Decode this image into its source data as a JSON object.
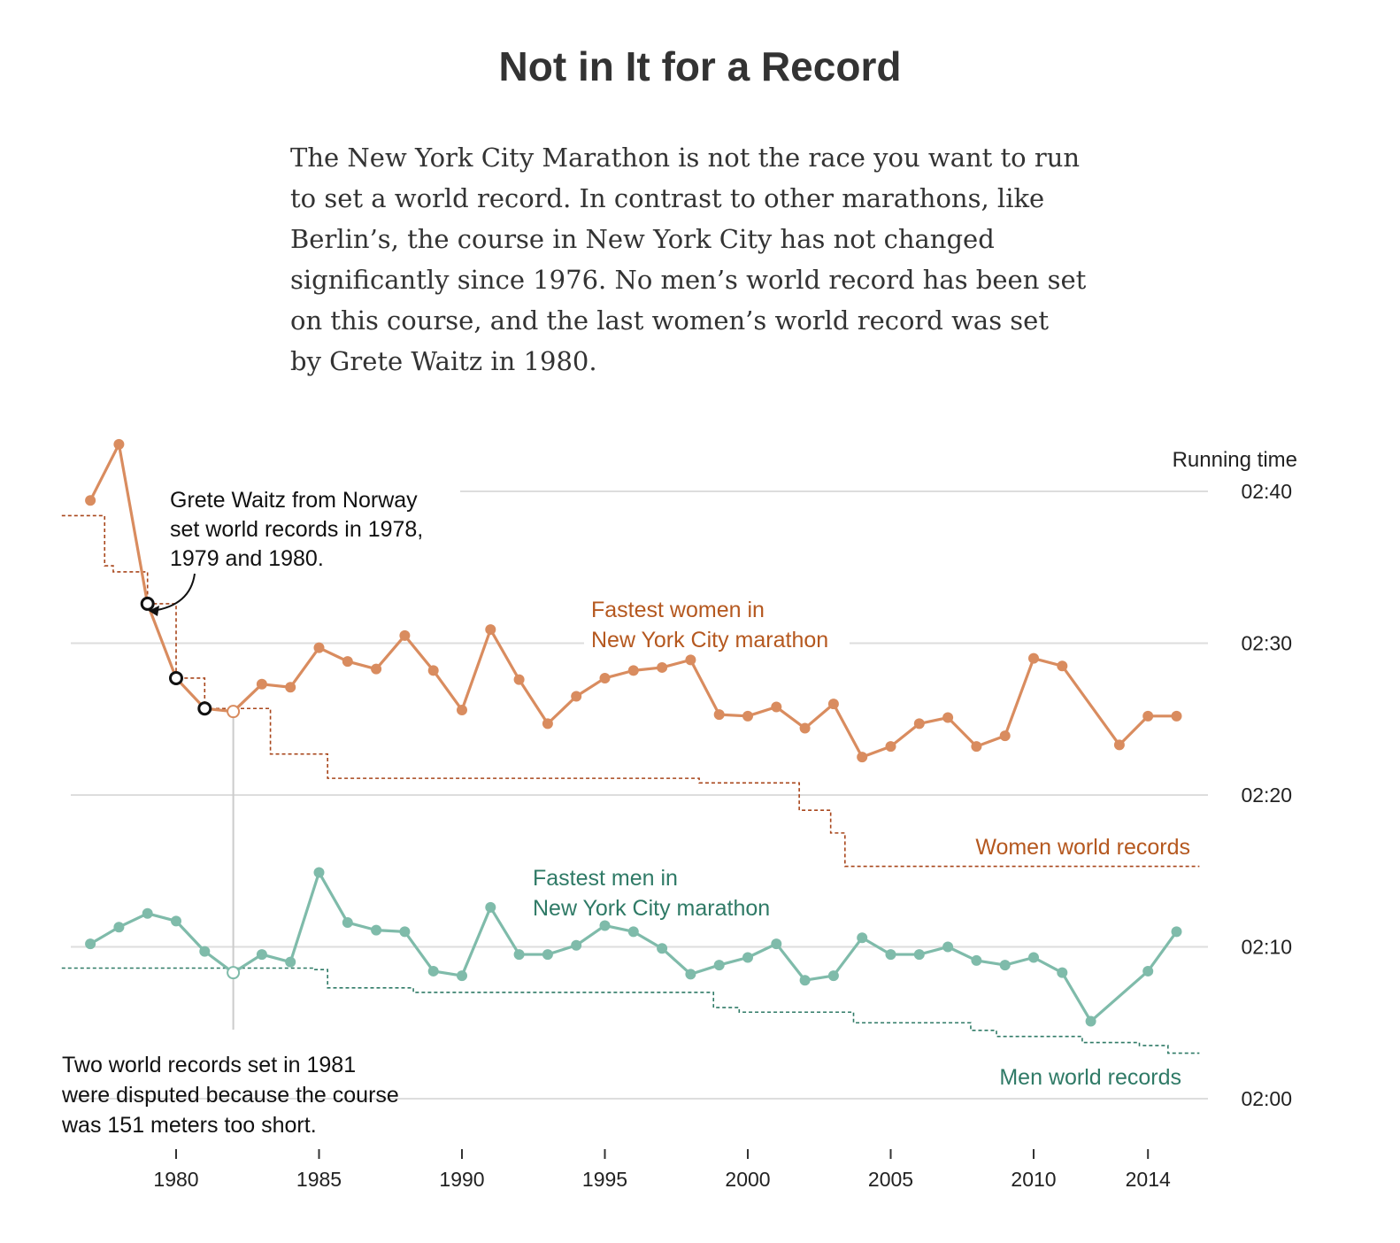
{
  "title": "Not in It for a Record",
  "intro": "The New York City Marathon is not the race you want to run to set a world record. In contrast to other marathons, like Berlin’s, the course in New York City has not changed significantly since 1976. No men’s world record has been set on this course, and the last women’s world record was set by Grete Waitz in 1980.",
  "colors": {
    "women": "#d98c5f",
    "women_label": "#b5581f",
    "women_record": "#a8461b",
    "men": "#7fbbaa",
    "men_label": "#2f7a66",
    "men_record": "#2f7a66",
    "grid": "#dddddd"
  },
  "annotations": {
    "waitz": [
      "Grete Waitz from Norway",
      "set world records in 1978,",
      "1979 and 1980."
    ],
    "disputed": [
      "Two world records set in 1981",
      "were disputed because the course",
      "was 151 meters too short."
    ]
  },
  "chart_data": {
    "type": "line",
    "ylabel": "Running time",
    "y_unit": "minutes",
    "ylim": [
      120,
      163
    ],
    "xlim": [
      1975.5,
      2016.2
    ],
    "yticks": [
      {
        "value": 160,
        "label": "02:40"
      },
      {
        "value": 150,
        "label": "02:30"
      },
      {
        "value": 140,
        "label": "02:20"
      },
      {
        "value": 130,
        "label": "02:10"
      },
      {
        "value": 120,
        "label": "02:00"
      }
    ],
    "xticks": [
      1980,
      1985,
      1990,
      1995,
      2000,
      2005,
      2010,
      2014
    ],
    "grid": true,
    "series": [
      {
        "name": "Fastest women in New York City marathon",
        "label_lines": [
          "Fastest women in",
          "New York City marathon"
        ],
        "style": "line",
        "x": [
          1977,
          1978,
          1979,
          1980,
          1981,
          1982,
          1983,
          1984,
          1985,
          1986,
          1987,
          1988,
          1989,
          1990,
          1991,
          1992,
          1993,
          1994,
          1995,
          1996,
          1997,
          1998,
          1999,
          2000,
          2001,
          2002,
          2003,
          2004,
          2005,
          2006,
          2007,
          2008,
          2009,
          2010,
          2011,
          2013,
          2014,
          2015
        ],
        "y": [
          159.4,
          163.1,
          152.6,
          147.7,
          145.7,
          145.5,
          147.3,
          147.1,
          149.7,
          148.8,
          148.3,
          150.5,
          148.2,
          145.6,
          150.9,
          147.6,
          144.7,
          146.5,
          147.7,
          148.2,
          148.4,
          148.9,
          145.3,
          145.2,
          145.8,
          144.4,
          146.0,
          142.5,
          143.2,
          144.7,
          145.1,
          143.2,
          143.9,
          149.0,
          148.5,
          143.3,
          145.2,
          145.2
        ],
        "markers": [
          {
            "x": 1979,
            "y": 152.6,
            "style": "open-dark"
          },
          {
            "x": 1980,
            "y": 147.7,
            "style": "open-dark"
          },
          {
            "x": 1981,
            "y": 145.7,
            "style": "open-dark"
          },
          {
            "x": 1982,
            "y": 145.5,
            "style": "open-light"
          }
        ]
      },
      {
        "name": "Women world records",
        "style": "step-dashed",
        "x": [
          1976,
          1977.5,
          1977.8,
          1979,
          1979,
          1980,
          1980,
          1981,
          1981,
          1983.3,
          1985.3,
          1998.3,
          2001.8,
          2002.9,
          2003.4,
          2015.8
        ],
        "y": [
          158.4,
          155.1,
          154.7,
          152.6,
          152.6,
          147.7,
          147.7,
          145.7,
          145.7,
          142.7,
          141.1,
          140.8,
          139.0,
          137.5,
          135.3,
          135.3
        ]
      },
      {
        "name": "Fastest men in New York City marathon",
        "label_lines": [
          "Fastest men in",
          "New York City marathon"
        ],
        "style": "line",
        "x": [
          1977,
          1978,
          1979,
          1980,
          1981,
          1982,
          1983,
          1984,
          1985,
          1986,
          1987,
          1988,
          1989,
          1990,
          1991,
          1992,
          1993,
          1994,
          1995,
          1996,
          1997,
          1998,
          1999,
          2000,
          2001,
          2002,
          2003,
          2004,
          2005,
          2006,
          2007,
          2008,
          2009,
          2010,
          2011,
          2012,
          2014,
          2015
        ],
        "y": [
          130.2,
          131.3,
          132.2,
          131.7,
          129.7,
          128.3,
          129.5,
          129.0,
          134.9,
          131.6,
          131.1,
          131.0,
          128.4,
          128.1,
          132.6,
          129.5,
          129.5,
          130.1,
          131.4,
          131.0,
          129.9,
          128.2,
          128.8,
          129.3,
          130.2,
          127.8,
          128.1,
          130.6,
          129.5,
          129.5,
          130.0,
          129.1,
          128.8,
          129.3,
          128.3,
          125.1,
          128.4,
          131.0
        ],
        "markers": [
          {
            "x": 1982,
            "y": 128.3,
            "style": "open-light"
          }
        ]
      },
      {
        "name": "Men world records",
        "style": "step-dashed",
        "x": [
          1976,
          1984.8,
          1985.3,
          1988.3,
          1998.8,
          1999.7,
          2003.7,
          2007.8,
          2008.7,
          2011.7,
          2013.7,
          2014.7,
          2015.8
        ],
        "y": [
          128.6,
          128.5,
          127.3,
          127.0,
          126.0,
          125.7,
          125.0,
          124.5,
          124.1,
          123.7,
          123.5,
          123.0,
          123.0
        ]
      }
    ]
  }
}
